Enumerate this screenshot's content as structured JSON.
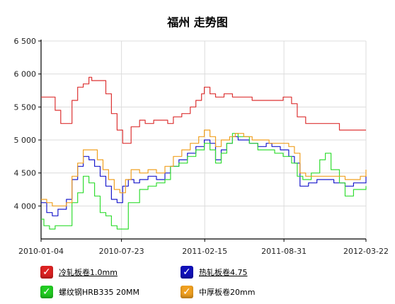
{
  "chart_data": {
    "type": "line",
    "title": "福州 走势图",
    "xlabel": "",
    "ylabel": "",
    "ylim": [
      3500,
      6500
    ],
    "grid": true,
    "y_ticks": [
      "6 500",
      "6 000",
      "5 500",
      "5 000",
      "4 500",
      "4 000"
    ],
    "y_tick_values": [
      6500,
      6000,
      5500,
      5000,
      4500,
      4000
    ],
    "x_ticks": [
      "2010-01-04",
      "2010-07-23",
      "2011-02-15",
      "2011-08-31",
      "2012-03-22"
    ],
    "x_tick_values": [
      "2010-01-04",
      "2010-07-23",
      "2011-02-15",
      "2011-08-31",
      "2012-03-22"
    ],
    "legend_placement": "bottom",
    "series": [
      {
        "name": "冷轧板卷1.0mm",
        "color": "#dd3333",
        "points": [
          [
            "2010-01-04",
            5650
          ],
          [
            "2010-01-25",
            5650
          ],
          [
            "2010-02-08",
            5450
          ],
          [
            "2010-02-22",
            5250
          ],
          [
            "2010-03-08",
            5250
          ],
          [
            "2010-03-22",
            5600
          ],
          [
            "2010-04-05",
            5800
          ],
          [
            "2010-04-19",
            5850
          ],
          [
            "2010-05-03",
            5950
          ],
          [
            "2010-05-10",
            5900
          ],
          [
            "2010-05-31",
            5900
          ],
          [
            "2010-06-14",
            5700
          ],
          [
            "2010-06-28",
            5400
          ],
          [
            "2010-07-12",
            5150
          ],
          [
            "2010-07-26",
            4950
          ],
          [
            "2010-08-02",
            4950
          ],
          [
            "2010-08-16",
            5200
          ],
          [
            "2010-09-06",
            5300
          ],
          [
            "2010-09-20",
            5250
          ],
          [
            "2010-10-11",
            5300
          ],
          [
            "2010-11-01",
            5300
          ],
          [
            "2010-11-15",
            5250
          ],
          [
            "2010-11-29",
            5350
          ],
          [
            "2010-12-20",
            5400
          ],
          [
            "2011-01-10",
            5500
          ],
          [
            "2011-01-24",
            5600
          ],
          [
            "2011-02-07",
            5700
          ],
          [
            "2011-02-14",
            5800
          ],
          [
            "2011-02-28",
            5700
          ],
          [
            "2011-03-14",
            5650
          ],
          [
            "2011-04-04",
            5700
          ],
          [
            "2011-04-25",
            5650
          ],
          [
            "2011-06-13",
            5600
          ],
          [
            "2011-08-01",
            5600
          ],
          [
            "2011-08-29",
            5650
          ],
          [
            "2011-09-19",
            5550
          ],
          [
            "2011-10-03",
            5350
          ],
          [
            "2011-10-24",
            5250
          ],
          [
            "2011-12-05",
            5250
          ],
          [
            "2012-01-02",
            5250
          ],
          [
            "2012-01-16",
            5150
          ],
          [
            "2012-03-22",
            5150
          ]
        ]
      },
      {
        "name": "热轧板卷4.75",
        "color": "#1a1acc",
        "points": [
          [
            "2010-01-04",
            4050
          ],
          [
            "2010-01-18",
            3900
          ],
          [
            "2010-02-01",
            3850
          ],
          [
            "2010-02-15",
            3950
          ],
          [
            "2010-03-08",
            4100
          ],
          [
            "2010-03-22",
            4400
          ],
          [
            "2010-04-05",
            4600
          ],
          [
            "2010-04-19",
            4750
          ],
          [
            "2010-05-03",
            4700
          ],
          [
            "2010-05-17",
            4600
          ],
          [
            "2010-05-31",
            4450
          ],
          [
            "2010-06-14",
            4300
          ],
          [
            "2010-06-28",
            4100
          ],
          [
            "2010-07-12",
            4050
          ],
          [
            "2010-07-26",
            4300
          ],
          [
            "2010-08-09",
            4400
          ],
          [
            "2010-08-23",
            4350
          ],
          [
            "2010-09-06",
            4400
          ],
          [
            "2010-09-27",
            4450
          ],
          [
            "2010-10-18",
            4400
          ],
          [
            "2010-11-08",
            4500
          ],
          [
            "2010-11-22",
            4600
          ],
          [
            "2010-12-13",
            4700
          ],
          [
            "2011-01-03",
            4800
          ],
          [
            "2011-01-24",
            4900
          ],
          [
            "2011-02-14",
            5000
          ],
          [
            "2011-02-28",
            4950
          ],
          [
            "2011-03-14",
            4700
          ],
          [
            "2011-03-28",
            4850
          ],
          [
            "2011-04-11",
            4950
          ],
          [
            "2011-04-25",
            5050
          ],
          [
            "2011-05-09",
            5000
          ],
          [
            "2011-06-06",
            4950
          ],
          [
            "2011-06-27",
            4900
          ],
          [
            "2011-07-18",
            4950
          ],
          [
            "2011-08-01",
            4900
          ],
          [
            "2011-08-22",
            4850
          ],
          [
            "2011-09-12",
            4750
          ],
          [
            "2011-09-26",
            4650
          ],
          [
            "2011-10-10",
            4300
          ],
          [
            "2011-10-31",
            4350
          ],
          [
            "2011-11-21",
            4400
          ],
          [
            "2011-12-12",
            4400
          ],
          [
            "2012-01-02",
            4350
          ],
          [
            "2012-01-30",
            4300
          ],
          [
            "2012-02-20",
            4350
          ],
          [
            "2012-03-22",
            4450
          ]
        ]
      },
      {
        "name": "螺纹钢HRB335 20MM",
        "color": "#33dd33",
        "points": [
          [
            "2010-01-04",
            3800
          ],
          [
            "2010-01-11",
            3700
          ],
          [
            "2010-01-25",
            3650
          ],
          [
            "2010-02-08",
            3700
          ],
          [
            "2010-02-22",
            3700
          ],
          [
            "2010-03-08",
            3700
          ],
          [
            "2010-03-22",
            4050
          ],
          [
            "2010-04-05",
            4200
          ],
          [
            "2010-04-19",
            4450
          ],
          [
            "2010-05-03",
            4350
          ],
          [
            "2010-05-17",
            4150
          ],
          [
            "2010-05-31",
            3900
          ],
          [
            "2010-06-14",
            3850
          ],
          [
            "2010-06-28",
            3700
          ],
          [
            "2010-07-12",
            3650
          ],
          [
            "2010-07-26",
            3650
          ],
          [
            "2010-08-09",
            4050
          ],
          [
            "2010-08-23",
            4050
          ],
          [
            "2010-09-06",
            4250
          ],
          [
            "2010-09-27",
            4300
          ],
          [
            "2010-10-18",
            4350
          ],
          [
            "2010-11-08",
            4400
          ],
          [
            "2010-11-22",
            4600
          ],
          [
            "2010-12-13",
            4650
          ],
          [
            "2011-01-03",
            4750
          ],
          [
            "2011-01-24",
            4850
          ],
          [
            "2011-02-14",
            4950
          ],
          [
            "2011-02-28",
            4850
          ],
          [
            "2011-03-14",
            4650
          ],
          [
            "2011-03-28",
            4800
          ],
          [
            "2011-04-11",
            4950
          ],
          [
            "2011-04-25",
            5100
          ],
          [
            "2011-05-09",
            5050
          ],
          [
            "2011-06-06",
            4950
          ],
          [
            "2011-06-27",
            4850
          ],
          [
            "2011-07-18",
            4850
          ],
          [
            "2011-08-08",
            4800
          ],
          [
            "2011-08-29",
            4750
          ],
          [
            "2011-09-19",
            4650
          ],
          [
            "2011-10-03",
            4450
          ],
          [
            "2011-10-17",
            4400
          ],
          [
            "2011-11-07",
            4500
          ],
          [
            "2011-11-28",
            4700
          ],
          [
            "2011-12-12",
            4800
          ],
          [
            "2011-12-26",
            4550
          ],
          [
            "2012-01-16",
            4350
          ],
          [
            "2012-01-30",
            4150
          ],
          [
            "2012-02-20",
            4250
          ],
          [
            "2012-03-22",
            4300
          ]
        ]
      },
      {
        "name": "中厚板卷20mm",
        "color": "#f0a020",
        "points": [
          [
            "2010-01-04",
            4100
          ],
          [
            "2010-01-18",
            4050
          ],
          [
            "2010-02-01",
            4000
          ],
          [
            "2010-02-22",
            4000
          ],
          [
            "2010-03-08",
            4050
          ],
          [
            "2010-03-22",
            4450
          ],
          [
            "2010-04-05",
            4650
          ],
          [
            "2010-04-19",
            4850
          ],
          [
            "2010-05-10",
            4850
          ],
          [
            "2010-05-24",
            4700
          ],
          [
            "2010-06-07",
            4550
          ],
          [
            "2010-06-21",
            4400
          ],
          [
            "2010-07-05",
            4250
          ],
          [
            "2010-07-19",
            4200
          ],
          [
            "2010-08-02",
            4400
          ],
          [
            "2010-08-16",
            4550
          ],
          [
            "2010-09-06",
            4500
          ],
          [
            "2010-09-27",
            4550
          ],
          [
            "2010-10-18",
            4500
          ],
          [
            "2010-11-08",
            4600
          ],
          [
            "2010-11-29",
            4750
          ],
          [
            "2010-12-20",
            4850
          ],
          [
            "2011-01-10",
            4950
          ],
          [
            "2011-01-31",
            5050
          ],
          [
            "2011-02-14",
            5150
          ],
          [
            "2011-02-28",
            5050
          ],
          [
            "2011-03-14",
            4900
          ],
          [
            "2011-03-28",
            5000
          ],
          [
            "2011-04-18",
            5050
          ],
          [
            "2011-05-02",
            5100
          ],
          [
            "2011-05-23",
            5050
          ],
          [
            "2011-06-13",
            5000
          ],
          [
            "2011-07-04",
            5000
          ],
          [
            "2011-07-25",
            4950
          ],
          [
            "2011-08-22",
            4950
          ],
          [
            "2011-09-12",
            4900
          ],
          [
            "2011-09-26",
            4800
          ],
          [
            "2011-10-10",
            4500
          ],
          [
            "2011-10-24",
            4450
          ],
          [
            "2011-11-14",
            4450
          ],
          [
            "2011-12-05",
            4450
          ],
          [
            "2012-01-02",
            4450
          ],
          [
            "2012-01-30",
            4400
          ],
          [
            "2012-02-20",
            4400
          ],
          [
            "2012-03-08",
            4450
          ],
          [
            "2012-03-22",
            4550
          ]
        ]
      }
    ]
  },
  "legend": [
    {
      "label": "冷轧板卷1.0mm",
      "color": "#dd2222",
      "underline": true
    },
    {
      "label": "热轧板卷4.75",
      "color": "#1111bb",
      "underline": true
    },
    {
      "label": "螺纹钢HRB335 20MM",
      "color": "#22cc22",
      "underline": false
    },
    {
      "label": "中厚板卷20mm",
      "color": "#f0a020",
      "underline": false
    }
  ],
  "legend_check": "✓"
}
